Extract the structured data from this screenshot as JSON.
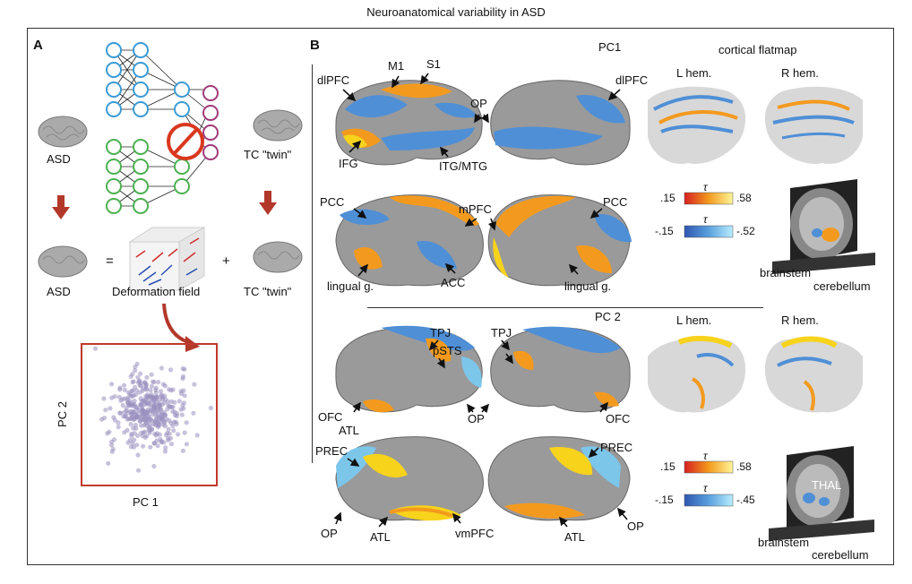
{
  "title": "Neuroanatomical variability in ASD",
  "panelA": {
    "letter": "A",
    "asd_top": "ASD",
    "tc_top": "TC \"twin\"",
    "asd_bottom": "ASD",
    "equals": "=",
    "plus": "+",
    "deformation": "Deformation field",
    "tc_bottom": "TC \"twin\"",
    "scatter_xlabel": "PC 1",
    "scatter_ylabel": "PC 2"
  },
  "panelB": {
    "letter": "B",
    "pc1": "PC1",
    "pc2": "PC 2",
    "flatmap_title": "cortical flatmap",
    "lhem": "L hem.",
    "rhem": "R hem.",
    "lhem2": "L hem.",
    "rhem2": "R hem.",
    "labels_pc1": {
      "dlpfc_l": "dlPFC",
      "m1": "M1",
      "s1": "S1",
      "dlpfc_r": "dlPFC",
      "op": "OP",
      "ifg": "IFG",
      "itg": "ITG/MTG",
      "pcc_l": "PCC",
      "mpfc": "mPFC",
      "pcc_r": "PCC",
      "lingual_l": "lingual g.",
      "acc": "ACC",
      "lingual_r": "lingual g."
    },
    "labels_pc2": {
      "tpj_l": "TPJ",
      "tpj_r": "TPJ",
      "psts": "pSTS",
      "ofc_l": "OFC",
      "atl_l": "ATL",
      "op_mid": "OP",
      "ofc_r": "OFC",
      "prec_l": "PREC",
      "prec_r": "PREC",
      "op_l": "OP",
      "atl_bl": "ATL",
      "vmpfc": "vmPFC",
      "atl_br": "ATL",
      "op_r": "OP"
    },
    "colorbars": {
      "pc1_pos_min": ".15",
      "pc1_pos_max": ".58",
      "pc1_neg_min": "-.15",
      "pc1_neg_max": "-.52",
      "pc2_pos_min": ".15",
      "pc2_pos_max": ".58",
      "pc2_neg_min": "-.15",
      "pc2_neg_max": "-.45",
      "tau": "τ"
    },
    "sub_pc1": {
      "brainstem": "brainstem",
      "cerebellum": "cerebellum"
    },
    "sub_pc2": {
      "thal": "THAL",
      "brainstem": "brainstem",
      "cerebellum": "cerebellum"
    }
  },
  "colors": {
    "net_blue": "#3a9bd5",
    "net_green": "#4cb050",
    "net_purple": "#a03a7a",
    "red_accent": "#c0392b",
    "scatter_point": "#9a8fc0",
    "brain_gray": "#9a9a9a",
    "map_orange": "#f39a1e",
    "map_yellow": "#f7d31c",
    "map_blue": "#4f8fd6",
    "map_cyan": "#7cc6ea"
  }
}
